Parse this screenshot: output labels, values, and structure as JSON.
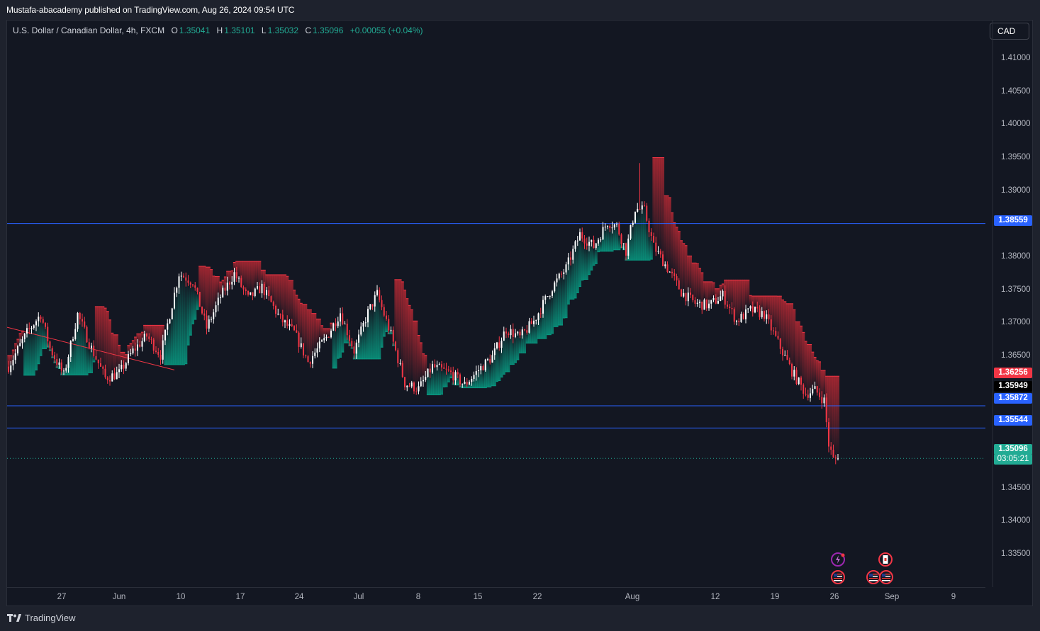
{
  "header": {
    "published": "Mustafa-abacademy published on TradingView.com, Aug 26, 2024 09:54 UTC"
  },
  "legend": {
    "symbol": "U.S. Dollar / Canadian Dollar, 4h, FXCM",
    "o_label": "O",
    "o": "1.35041",
    "h_label": "H",
    "h": "1.35101",
    "l_label": "L",
    "l": "1.35032",
    "c_label": "C",
    "c": "1.35096",
    "change": "+0.00055 (+0.04%)"
  },
  "currency_button": "CAD",
  "price_ticks": [
    "1.41000",
    "1.40500",
    "1.40000",
    "1.39500",
    "1.39000",
    "1.38000",
    "1.37500",
    "1.37000",
    "1.36500",
    "1.34500",
    "1.34000",
    "1.33500"
  ],
  "price_labels": {
    "resistance": "1.38559",
    "stop_band": "1.36256",
    "last_close": "1.35949",
    "support_1": "1.35872",
    "support_2": "1.35544",
    "current_price": "1.35096",
    "countdown": "03:05:21"
  },
  "time_ticks": [
    "27",
    "Jun",
    "10",
    "17",
    "24",
    "Jul",
    "8",
    "15",
    "22",
    "Aug",
    "12",
    "19",
    "26",
    "Sep",
    "9"
  ],
  "footer": {
    "brand": "TradingView"
  },
  "colors": {
    "background": "#131722",
    "up": "#ffffff",
    "down": "#f23645",
    "teal_band": "#089981",
    "red_band": "#b22833",
    "hline": "#2962ff",
    "price_label_green": "#22ab94"
  },
  "icons": [
    "lightning-event-icon",
    "canada-flag-icon",
    "us-flag-icon",
    "us-flag-icon",
    "us-flag-icon"
  ],
  "chart_data": {
    "type": "candlestick",
    "timeframe": "4h",
    "ylim": [
      1.332,
      1.4155
    ],
    "horizontal_levels": [
      1.38559,
      1.35872,
      1.35544
    ],
    "current_price": 1.35096,
    "swing_path": [
      [
        0,
        1.3645
      ],
      [
        8,
        1.3695
      ],
      [
        14,
        1.3722
      ],
      [
        18,
        1.3672
      ],
      [
        24,
        1.3632
      ],
      [
        30,
        1.3722
      ],
      [
        36,
        1.3672
      ],
      [
        42,
        1.3628
      ],
      [
        48,
        1.3635
      ],
      [
        54,
        1.3668
      ],
      [
        60,
        1.369
      ],
      [
        66,
        1.3662
      ],
      [
        74,
        1.3782
      ],
      [
        80,
        1.377
      ],
      [
        86,
        1.3702
      ],
      [
        92,
        1.3748
      ],
      [
        98,
        1.3782
      ],
      [
        104,
        1.3745
      ],
      [
        110,
        1.3762
      ],
      [
        118,
        1.3715
      ],
      [
        124,
        1.3695
      ],
      [
        130,
        1.3652
      ],
      [
        138,
        1.3688
      ],
      [
        144,
        1.3725
      ],
      [
        150,
        1.3668
      ],
      [
        156,
        1.3725
      ],
      [
        160,
        1.3752
      ],
      [
        166,
        1.3692
      ],
      [
        172,
        1.362
      ],
      [
        178,
        1.3612
      ],
      [
        184,
        1.3645
      ],
      [
        192,
        1.3635
      ],
      [
        198,
        1.3618
      ],
      [
        204,
        1.364
      ],
      [
        210,
        1.366
      ],
      [
        216,
        1.37
      ],
      [
        222,
        1.3688
      ],
      [
        228,
        1.3712
      ],
      [
        236,
        1.3762
      ],
      [
        242,
        1.379
      ],
      [
        248,
        1.384
      ],
      [
        254,
        1.3822
      ],
      [
        260,
        1.3858
      ],
      [
        264,
        1.3852
      ],
      [
        268,
        1.3815
      ],
      [
        272,
        1.3878
      ],
      [
        276,
        1.3875
      ],
      [
        280,
        1.3822
      ],
      [
        286,
        1.379
      ],
      [
        292,
        1.3755
      ],
      [
        298,
        1.3738
      ],
      [
        304,
        1.3735
      ],
      [
        310,
        1.375
      ],
      [
        316,
        1.3712
      ],
      [
        322,
        1.3728
      ],
      [
        328,
        1.3722
      ],
      [
        334,
        1.368
      ],
      [
        340,
        1.3638
      ],
      [
        346,
        1.3605
      ],
      [
        350,
        1.361
      ],
      [
        354,
        1.3595
      ],
      [
        356,
        1.353
      ],
      [
        358,
        1.3508
      ],
      [
        360,
        1.351
      ]
    ]
  }
}
